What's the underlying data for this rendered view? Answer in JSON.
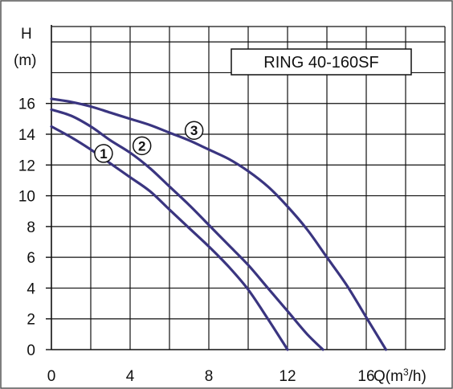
{
  "chart_data": {
    "type": "line",
    "title": "RING 40-160SF",
    "ylabel_line1": "H",
    "ylabel_line2": "(m)",
    "xlabel": "Q(m³/h)",
    "xlim": [
      0,
      20
    ],
    "ylim": [
      0,
      21
    ],
    "x_ticks": [
      0,
      4,
      8,
      12,
      16
    ],
    "y_ticks": [
      0,
      2,
      4,
      6,
      8,
      10,
      12,
      14,
      16
    ],
    "grid": true,
    "grid_x_step": 2,
    "grid_y_step": 2,
    "line_color": "#3a3580",
    "series": [
      {
        "name": "1",
        "x": [
          0,
          1,
          2,
          3,
          4,
          5,
          6,
          7,
          8,
          9,
          10,
          11,
          12
        ],
        "y": [
          14.5,
          13.8,
          13.0,
          12.1,
          11.2,
          10.3,
          9.1,
          7.9,
          6.7,
          5.4,
          3.9,
          2.0,
          0
        ]
      },
      {
        "name": "2",
        "x": [
          0,
          1,
          2,
          3,
          4,
          5,
          6,
          7,
          8,
          9,
          10,
          11,
          12,
          13,
          13.8
        ],
        "y": [
          15.6,
          15.2,
          14.5,
          13.6,
          12.8,
          11.8,
          10.6,
          9.4,
          8.1,
          6.8,
          5.5,
          4.0,
          2.5,
          1.0,
          0
        ]
      },
      {
        "name": "3",
        "x": [
          0,
          1,
          2,
          3,
          4,
          5,
          6,
          7,
          8,
          9,
          10,
          11,
          12,
          13,
          14,
          15,
          16,
          17
        ],
        "y": [
          16.3,
          16.1,
          15.8,
          15.4,
          15.0,
          14.6,
          14.1,
          13.6,
          13.0,
          12.4,
          11.6,
          10.6,
          9.3,
          7.8,
          6.0,
          4.2,
          2.1,
          0
        ]
      }
    ],
    "markers": [
      {
        "label": "1",
        "x": 2.65,
        "y": 12.75
      },
      {
        "label": "2",
        "x": 4.6,
        "y": 13.25
      },
      {
        "label": "3",
        "x": 7.25,
        "y": 14.25
      }
    ]
  }
}
